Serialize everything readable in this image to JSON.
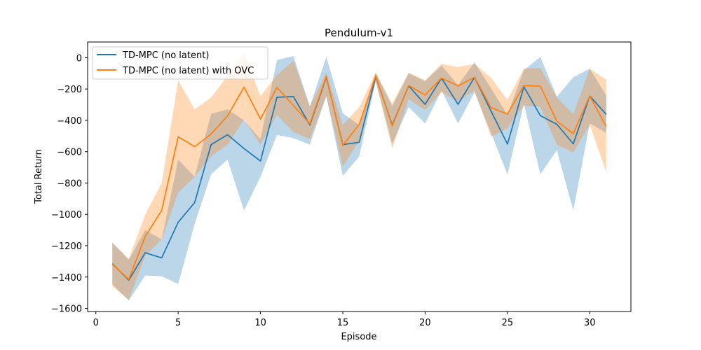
{
  "chart_data": {
    "type": "line",
    "title": "Pendulum-v1",
    "xlabel": "Episode",
    "ylabel": "Total Return",
    "xlim": [
      -0.5,
      32.5
    ],
    "ylim": [
      -1620,
      100
    ],
    "xticks": [
      0,
      5,
      10,
      15,
      20,
      25,
      30
    ],
    "yticks": [
      -1600,
      -1400,
      -1200,
      -1000,
      -800,
      -600,
      -400,
      -200,
      0
    ],
    "legend_position": "top-left",
    "grid": false,
    "x": [
      1,
      2,
      3,
      4,
      5,
      6,
      7,
      8,
      9,
      10,
      11,
      12,
      13,
      14,
      15,
      16,
      17,
      18,
      19,
      20,
      21,
      22,
      23,
      24,
      25,
      26,
      27,
      28,
      29,
      30,
      31
    ],
    "series": [
      {
        "name": "TD-MPC (no latent)",
        "color": "#1f77b4",
        "band_color": "#1f77b4",
        "values": [
          -1315,
          -1420,
          -1245,
          -1278,
          -1050,
          -925,
          -555,
          -492,
          -580,
          -660,
          -253,
          -248,
          -430,
          -125,
          -555,
          -540,
          -120,
          -430,
          -180,
          -298,
          -130,
          -298,
          -125,
          -340,
          -552,
          -185,
          -370,
          -425,
          -550,
          -245,
          -362
        ],
        "lower": [
          -1445,
          -1550,
          -1390,
          -1395,
          -1445,
          -1060,
          -745,
          -650,
          -975,
          -760,
          -493,
          -513,
          -555,
          -245,
          -755,
          -630,
          -150,
          -550,
          -315,
          -420,
          -210,
          -420,
          -220,
          -480,
          -745,
          -295,
          -745,
          -590,
          -975,
          -420,
          -480
        ],
        "upper": [
          -1180,
          -1290,
          -1100,
          -1160,
          -650,
          -760,
          -358,
          -330,
          -400,
          -520,
          -15,
          10,
          -312,
          5,
          -355,
          -430,
          -95,
          -310,
          -100,
          -150,
          -50,
          -175,
          -30,
          -195,
          -365,
          -80,
          5,
          -250,
          -125,
          -70,
          -240
        ]
      },
      {
        "name": "TD-MPC (no latent) with OVC",
        "color": "#ff7f0e",
        "band_color": "#ff7f0e",
        "values": [
          -1318,
          -1415,
          -1140,
          -975,
          -505,
          -568,
          -488,
          -372,
          -188,
          -392,
          -190,
          -305,
          -422,
          -120,
          -560,
          -425,
          -115,
          -435,
          -178,
          -238,
          -130,
          -180,
          -125,
          -318,
          -360,
          -178,
          -182,
          -405,
          -485,
          -245,
          -440
        ],
        "lower": [
          -1460,
          -1545,
          -1265,
          -1160,
          -860,
          -760,
          -630,
          -555,
          -395,
          -555,
          -365,
          -475,
          -520,
          -245,
          -695,
          -530,
          -155,
          -580,
          -265,
          -335,
          -220,
          -280,
          -210,
          -505,
          -450,
          -305,
          -315,
          -555,
          -605,
          -430,
          -730
        ],
        "upper": [
          -1180,
          -1285,
          -1000,
          -800,
          -145,
          -330,
          -255,
          -115,
          25,
          -245,
          -110,
          -20,
          -310,
          -95,
          -430,
          -315,
          -95,
          -295,
          -95,
          -145,
          -40,
          -60,
          -40,
          -128,
          -270,
          -70,
          -65,
          -255,
          -360,
          -70,
          -140
        ]
      }
    ]
  }
}
